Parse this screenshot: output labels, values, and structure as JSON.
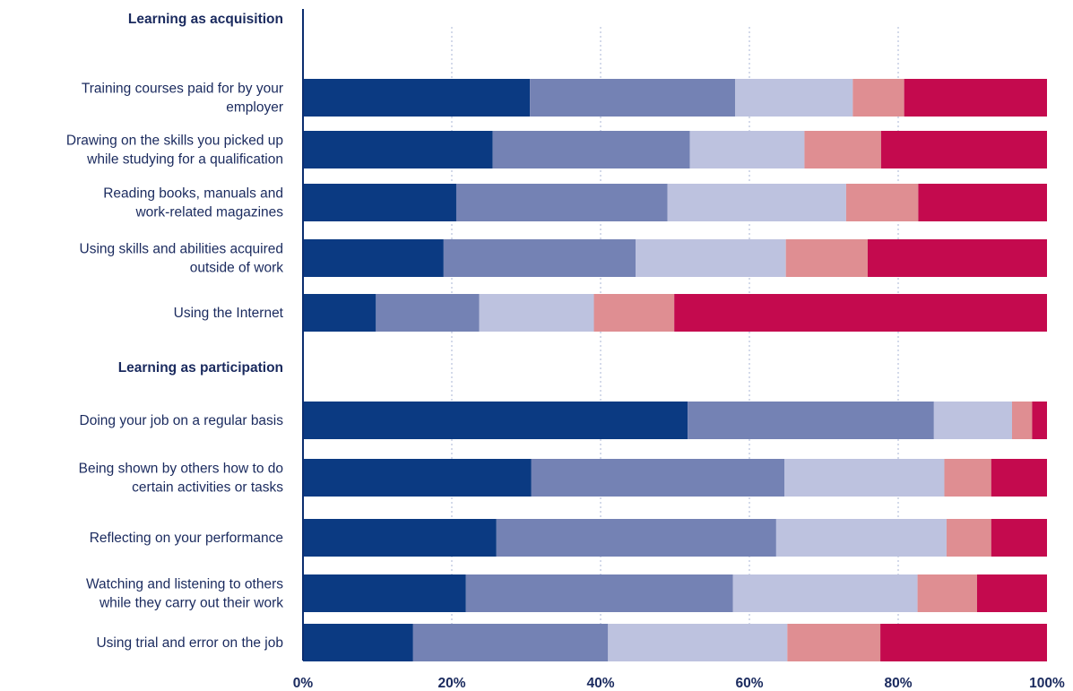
{
  "chart_data": {
    "type": "bar",
    "orientation": "horizontal",
    "stacked": true,
    "xlim": [
      0,
      100
    ],
    "x_ticks": [
      "0%",
      "20%",
      "40%",
      "60%",
      "80%",
      "100%"
    ],
    "grid": true,
    "sections": [
      {
        "title": "Learning as acquisition",
        "rows": [
          {
            "label": [
              "Training courses paid for by your",
              "employer"
            ],
            "values": [
              30.5,
              27.6,
              15.8,
              6.9,
              19.2
            ]
          },
          {
            "label": [
              "Drawing on the skills you picked up",
              "while studying for a qualification"
            ],
            "values": [
              25.5,
              26.5,
              15.4,
              10.3,
              22.3
            ]
          },
          {
            "label": [
              "Reading books, manuals and",
              "work-related magazines"
            ],
            "values": [
              20.6,
              28.4,
              24.0,
              9.7,
              17.3
            ]
          },
          {
            "label": [
              "Using skills and abilities acquired",
              "outside of work"
            ],
            "values": [
              18.9,
              25.8,
              20.2,
              11.0,
              24.1
            ]
          },
          {
            "label": [
              "Using the Internet"
            ],
            "values": [
              9.8,
              13.9,
              15.4,
              10.8,
              50.1
            ]
          }
        ]
      },
      {
        "title": "Learning as participation",
        "rows": [
          {
            "label": [
              "Doing your job on a regular basis"
            ],
            "values": [
              51.7,
              33.1,
              10.5,
              2.7,
              2.0
            ]
          },
          {
            "label": [
              "Being shown by others how to do",
              "certain activities or tasks"
            ],
            "values": [
              30.7,
              34.0,
              21.5,
              6.3,
              7.5
            ]
          },
          {
            "label": [
              "Reflecting on your performance"
            ],
            "values": [
              26.0,
              37.6,
              22.9,
              6.0,
              7.5
            ]
          },
          {
            "label": [
              "Watching and listening to others",
              "while they carry out their work"
            ],
            "values": [
              21.9,
              35.9,
              24.8,
              8.0,
              9.4
            ]
          },
          {
            "label": [
              "Using trial and error on the job"
            ],
            "values": [
              14.8,
              26.2,
              24.1,
              12.5,
              22.4
            ]
          }
        ]
      }
    ],
    "segment_colors": [
      "#0b3a82",
      "#7482b4",
      "#bdc2df",
      "#df8e92",
      "#c40a4e"
    ]
  }
}
